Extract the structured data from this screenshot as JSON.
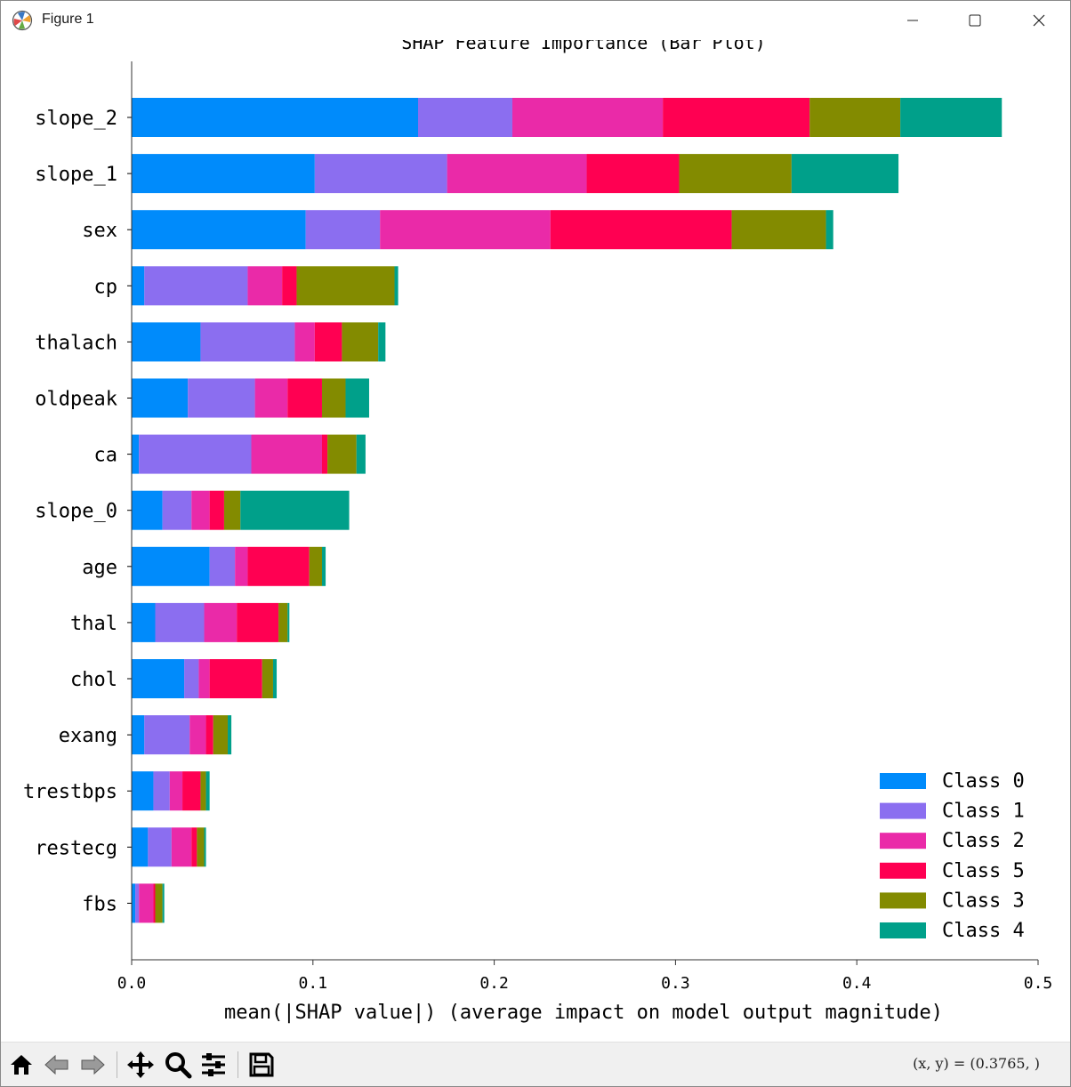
{
  "window": {
    "title": "Figure 1",
    "coords_readout": "(x, y) = (0.3765, )"
  },
  "icons": {
    "app": "matplotlib-logo-icon",
    "minimize": "minimize-icon",
    "maximize": "maximize-icon",
    "close": "close-icon",
    "toolbar": [
      "home-icon",
      "back-arrow-icon",
      "forward-arrow-icon",
      "pan-move-icon",
      "zoom-magnifier-icon",
      "configure-subplots-icon",
      "save-disk-icon"
    ]
  },
  "chart_data": {
    "type": "bar",
    "orientation": "horizontal",
    "stacked": true,
    "title": "SHAP Feature Importance (Bar Plot)",
    "xlabel": "mean(|SHAP value|) (average impact on model output magnitude)",
    "ylabel": "",
    "xlim": [
      0,
      0.5
    ],
    "xticks": [
      "0.0",
      "0.1",
      "0.2",
      "0.3",
      "0.4",
      "0.5"
    ],
    "grid": false,
    "legend_position": "lower-right",
    "categories": [
      "slope_2",
      "slope_1",
      "sex",
      "cp",
      "thalach",
      "oldpeak",
      "ca",
      "slope_0",
      "age",
      "thal",
      "chol",
      "exang",
      "trestbps",
      "restecg",
      "fbs"
    ],
    "series": [
      {
        "name": "Class 0",
        "color": "#008bfb",
        "values": [
          0.158,
          0.101,
          0.096,
          0.007,
          0.038,
          0.031,
          0.004,
          0.017,
          0.043,
          0.013,
          0.029,
          0.007,
          0.012,
          0.009,
          0.002
        ]
      },
      {
        "name": "Class 1",
        "color": "#8b6ef0",
        "values": [
          0.052,
          0.073,
          0.041,
          0.057,
          0.052,
          0.037,
          0.062,
          0.016,
          0.014,
          0.027,
          0.008,
          0.025,
          0.009,
          0.013,
          0.002
        ]
      },
      {
        "name": "Class 2",
        "color": "#ea2aa8",
        "values": [
          0.083,
          0.077,
          0.094,
          0.019,
          0.011,
          0.018,
          0.039,
          0.01,
          0.007,
          0.018,
          0.006,
          0.009,
          0.007,
          0.011,
          0.008
        ]
      },
      {
        "name": "Class 5",
        "color": "#ff0052",
        "values": [
          0.081,
          0.051,
          0.1,
          0.008,
          0.015,
          0.019,
          0.003,
          0.008,
          0.034,
          0.023,
          0.029,
          0.004,
          0.01,
          0.003,
          0.001
        ]
      },
      {
        "name": "Class 3",
        "color": "#838b00",
        "values": [
          0.05,
          0.062,
          0.052,
          0.054,
          0.02,
          0.013,
          0.016,
          0.009,
          0.007,
          0.005,
          0.006,
          0.008,
          0.003,
          0.004,
          0.004
        ]
      },
      {
        "name": "Class 4",
        "color": "#00a08a",
        "values": [
          0.056,
          0.059,
          0.004,
          0.002,
          0.004,
          0.013,
          0.005,
          0.06,
          0.002,
          0.001,
          0.002,
          0.002,
          0.002,
          0.001,
          0.001
        ]
      }
    ]
  }
}
